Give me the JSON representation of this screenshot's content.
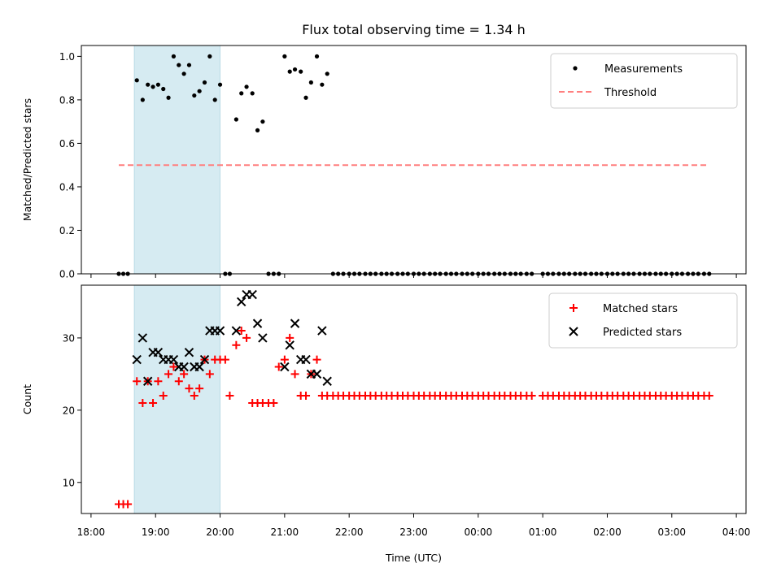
{
  "chart_data": [
    {
      "type": "scatter",
      "title": "Flux total observing time = 1.34 h",
      "xlabel": "",
      "ylabel": "Matched/Predicted stars",
      "xlim": [
        -0.15,
        10.15
      ],
      "ylim": [
        0.0,
        1.05
      ],
      "yticks": [
        0.0,
        0.2,
        0.4,
        0.6,
        0.8,
        1.0
      ],
      "ytick_labels": [
        "0.0",
        "0.2",
        "0.4",
        "0.6",
        "0.8",
        "1.0"
      ],
      "xticks": [
        0,
        1,
        2,
        3,
        4,
        5,
        6,
        7,
        8,
        9,
        10
      ],
      "x_unit": "hours after 18:00 UTC",
      "shaded_span": [
        0.67,
        2.0
      ],
      "legend": "top-right",
      "series": [
        {
          "name": "Measurements",
          "marker": "dot",
          "color": "#000000",
          "x": [
            0.43,
            0.5,
            0.57,
            0.71,
            0.8,
            0.88,
            0.96,
            1.04,
            1.12,
            1.2,
            1.28,
            1.36,
            1.44,
            1.52,
            1.6,
            1.68,
            1.76,
            1.84,
            1.92,
            2.0,
            2.08,
            2.15,
            2.25,
            2.33,
            2.41,
            2.5,
            2.58,
            2.66,
            2.75,
            2.83,
            2.91,
            3.0,
            3.08,
            3.16,
            3.25,
            3.33,
            3.41,
            3.5,
            3.58,
            3.66,
            3.75,
            3.83,
            3.91,
            4.0,
            4.08,
            4.16,
            4.25,
            4.33,
            4.41,
            4.5,
            4.58,
            4.66,
            4.75,
            4.83,
            4.91,
            5.0,
            5.08,
            5.16,
            5.25,
            5.33,
            5.41,
            5.5,
            5.58,
            5.66,
            5.75,
            5.83,
            5.91,
            6.0,
            6.08,
            6.16,
            6.25,
            6.33,
            6.41,
            6.5,
            6.58,
            6.66,
            6.75,
            6.83,
            7.0,
            7.08,
            7.16,
            7.25,
            7.33,
            7.41,
            7.5,
            7.58,
            7.66,
            7.75,
            7.83,
            7.91,
            8.0,
            8.08,
            8.16,
            8.25,
            8.33,
            8.41,
            8.5,
            8.58,
            8.66,
            8.75,
            8.83,
            8.91,
            9.0,
            9.08,
            9.16,
            9.25,
            9.33,
            9.41,
            9.5,
            9.58
          ],
          "y": [
            0.0,
            0.0,
            0.0,
            0.89,
            0.8,
            0.87,
            0.86,
            0.87,
            0.85,
            0.81,
            1.0,
            0.96,
            0.92,
            0.96,
            0.82,
            0.84,
            0.88,
            1.0,
            0.8,
            0.87,
            0.0,
            0.0,
            0.71,
            0.83,
            0.86,
            0.83,
            0.66,
            0.7,
            0.0,
            0.0,
            0.0,
            1.0,
            0.93,
            0.94,
            0.93,
            0.81,
            0.88,
            1.0,
            0.87,
            0.92,
            0.0,
            0.0,
            0.0,
            0.0,
            0.0,
            0.0,
            0.0,
            0.0,
            0.0,
            0.0,
            0.0,
            0.0,
            0.0,
            0.0,
            0.0,
            0.0,
            0.0,
            0.0,
            0.0,
            0.0,
            0.0,
            0.0,
            0.0,
            0.0,
            0.0,
            0.0,
            0.0,
            0.0,
            0.0,
            0.0,
            0.0,
            0.0,
            0.0,
            0.0,
            0.0,
            0.0,
            0.0,
            0.0,
            0.0,
            0.0,
            0.0,
            0.0,
            0.0,
            0.0,
            0.0,
            0.0,
            0.0,
            0.0,
            0.0,
            0.0,
            0.0,
            0.0,
            0.0,
            0.0,
            0.0,
            0.0,
            0.0,
            0.0,
            0.0,
            0.0,
            0.0,
            0.0,
            0.0,
            0.0,
            0.0,
            0.0,
            0.0,
            0.0,
            0.0,
            0.0
          ]
        },
        {
          "name": "Threshold",
          "style": "dashed-line",
          "color": "#ff7f7f",
          "x": [
            0.43,
            9.58
          ],
          "y": [
            0.5,
            0.5
          ]
        }
      ]
    },
    {
      "type": "scatter",
      "title": "",
      "xlabel": "Time (UTC)",
      "ylabel": "Count",
      "xlim": [
        -0.15,
        10.15
      ],
      "ylim": [
        5.7,
        37.3
      ],
      "yticks": [
        10,
        20,
        30
      ],
      "ytick_labels": [
        "10",
        "20",
        "30"
      ],
      "xticks": [
        0,
        1,
        2,
        3,
        4,
        5,
        6,
        7,
        8,
        9,
        10
      ],
      "xtick_labels": [
        "18:00",
        "19:00",
        "20:00",
        "21:00",
        "22:00",
        "23:00",
        "00:00",
        "01:00",
        "02:00",
        "03:00",
        "04:00"
      ],
      "x_unit": "hours after 18:00 UTC",
      "shaded_span": [
        0.67,
        2.0
      ],
      "legend": "top-right",
      "series": [
        {
          "name": "Matched stars",
          "marker": "plus",
          "color": "#ff0000",
          "x": [
            0.43,
            0.5,
            0.57,
            0.71,
            0.8,
            0.88,
            0.96,
            1.04,
            1.12,
            1.2,
            1.28,
            1.36,
            1.44,
            1.52,
            1.6,
            1.68,
            1.76,
            1.84,
            1.92,
            2.0,
            2.08,
            2.15,
            2.25,
            2.33,
            2.41,
            2.5,
            2.58,
            2.66,
            2.75,
            2.83,
            2.91,
            3.0,
            3.08,
            3.16,
            3.25,
            3.33,
            3.41,
            3.5,
            3.58,
            3.66,
            3.75,
            3.83,
            3.91,
            4.0,
            4.08,
            4.16,
            4.25,
            4.33,
            4.41,
            4.5,
            4.58,
            4.66,
            4.75,
            4.83,
            4.91,
            5.0,
            5.08,
            5.16,
            5.25,
            5.33,
            5.41,
            5.5,
            5.58,
            5.66,
            5.75,
            5.83,
            5.91,
            6.0,
            6.08,
            6.16,
            6.25,
            6.33,
            6.41,
            6.5,
            6.58,
            6.66,
            6.75,
            6.83,
            7.0,
            7.08,
            7.16,
            7.25,
            7.33,
            7.41,
            7.5,
            7.58,
            7.66,
            7.75,
            7.83,
            7.91,
            8.0,
            8.08,
            8.16,
            8.25,
            8.33,
            8.41,
            8.5,
            8.58,
            8.66,
            8.75,
            8.83,
            8.91,
            9.0,
            9.08,
            9.16,
            9.25,
            9.33,
            9.41,
            9.5,
            9.58
          ],
          "y": [
            7,
            7,
            7,
            24,
            21,
            24,
            21,
            24,
            22,
            25,
            26,
            24,
            25,
            23,
            22,
            23,
            27,
            25,
            27,
            27,
            27,
            22,
            29,
            31,
            30,
            21,
            21,
            21,
            21,
            21,
            26,
            27,
            30,
            25,
            22,
            22,
            25,
            27,
            22,
            22,
            22,
            22,
            22,
            22,
            22,
            22,
            22,
            22,
            22,
            22,
            22,
            22,
            22,
            22,
            22,
            22,
            22,
            22,
            22,
            22,
            22,
            22,
            22,
            22,
            22,
            22,
            22,
            22,
            22,
            22,
            22,
            22,
            22,
            22,
            22,
            22,
            22,
            22,
            22,
            22,
            22,
            22,
            22,
            22,
            22,
            22,
            22,
            22,
            22,
            22,
            22,
            22,
            22,
            22,
            22,
            22,
            22,
            22,
            22,
            22,
            22,
            22,
            22,
            22,
            22,
            22,
            22,
            22,
            22,
            22
          ]
        },
        {
          "name": "Predicted stars",
          "marker": "x",
          "color": "#000000",
          "x": [
            0.71,
            0.8,
            0.88,
            0.96,
            1.04,
            1.12,
            1.2,
            1.28,
            1.36,
            1.44,
            1.52,
            1.6,
            1.68,
            1.76,
            1.84,
            1.92,
            2.0,
            2.25,
            2.33,
            2.41,
            2.5,
            2.58,
            2.66,
            3.0,
            3.08,
            3.16,
            3.25,
            3.33,
            3.41,
            3.5,
            3.58,
            3.66
          ],
          "y": [
            27,
            30,
            24,
            28,
            28,
            27,
            27,
            27,
            26,
            26,
            28,
            26,
            26,
            27,
            31,
            31,
            31,
            31,
            35,
            36,
            36,
            32,
            30,
            26,
            29,
            32,
            27,
            27,
            25,
            25,
            31,
            24
          ]
        }
      ]
    }
  ]
}
